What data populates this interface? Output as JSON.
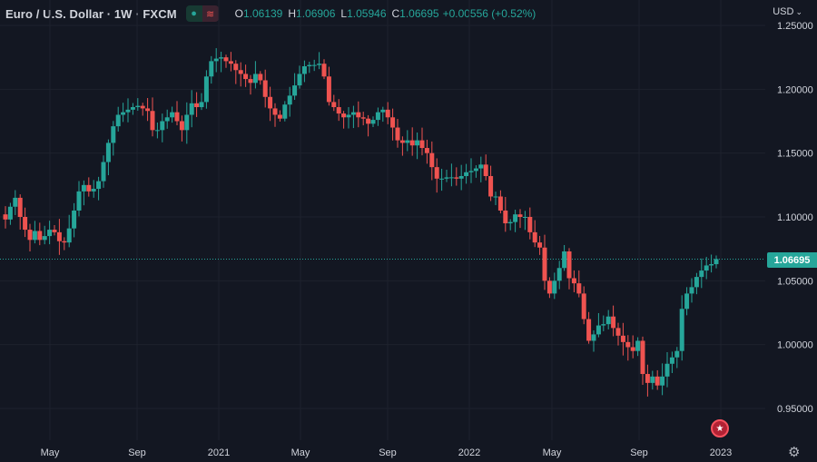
{
  "header": {
    "symbol": "Euro / U.S. Dollar · 1W · FXCM",
    "pill_left_icon": "dot-icon",
    "pill_right_icon": "wave-icon",
    "ohlc": [
      {
        "key": "O",
        "value": "1.06139"
      },
      {
        "key": "H",
        "value": "1.06906"
      },
      {
        "key": "L",
        "value": "1.05946"
      },
      {
        "key": "C",
        "value": "1.06695"
      }
    ],
    "change": "+0.00556 (+0.52%)",
    "currency": "USD"
  },
  "last_price_label": "1.06695",
  "colors": {
    "background": "#131722",
    "up": "#26a69a",
    "down": "#ef5350",
    "grid": "#1e222d",
    "text": "#d1d4dc"
  },
  "chart_data": {
    "type": "candlestick",
    "interval": "1W",
    "y_ticks": [
      "1.25000",
      "1.20000",
      "1.15000",
      "1.10000",
      "1.05000",
      "1.00000",
      "0.95000"
    ],
    "x_ticks": [
      "May",
      "Sep",
      "2021",
      "May",
      "Sep",
      "2022",
      "May",
      "Sep",
      "2023"
    ],
    "ylim": [
      0.95,
      1.25
    ],
    "last_price": 1.06695,
    "close_path": [
      1.098,
      1.108,
      1.115,
      1.1,
      1.09,
      1.082,
      1.089,
      1.082,
      1.085,
      1.09,
      1.088,
      1.081,
      1.08,
      1.091,
      1.105,
      1.12,
      1.125,
      1.12,
      1.122,
      1.128,
      1.143,
      1.158,
      1.171,
      1.18,
      1.182,
      1.184,
      1.186,
      1.187,
      1.185,
      1.183,
      1.168,
      1.168,
      1.175,
      1.178,
      1.182,
      1.175,
      1.168,
      1.18,
      1.189,
      1.186,
      1.19,
      1.21,
      1.222,
      1.224,
      1.225,
      1.222,
      1.22,
      1.215,
      1.212,
      1.208,
      1.205,
      1.212,
      1.207,
      1.194,
      1.185,
      1.18,
      1.177,
      1.188,
      1.195,
      1.203,
      1.212,
      1.218,
      1.219,
      1.219,
      1.22,
      1.21,
      1.19,
      1.186,
      1.181,
      1.178,
      1.18,
      1.182,
      1.178,
      1.177,
      1.173,
      1.176,
      1.182,
      1.184,
      1.178,
      1.17,
      1.16,
      1.158,
      1.16,
      1.156,
      1.16,
      1.154,
      1.15,
      1.139,
      1.13,
      1.13,
      1.131,
      1.131,
      1.13,
      1.132,
      1.135,
      1.136,
      1.138,
      1.141,
      1.132,
      1.116,
      1.116,
      1.105,
      1.095,
      1.096,
      1.102,
      1.1,
      1.1,
      1.088,
      1.08,
      1.076,
      1.05,
      1.04,
      1.05,
      1.06,
      1.073,
      1.052,
      1.048,
      1.04,
      1.02,
      1.003,
      1.008,
      1.015,
      1.016,
      1.022,
      1.013,
      1.007,
      1.002,
      0.998,
      0.995,
      1.003,
      0.977,
      0.97,
      0.975,
      0.968,
      0.975,
      0.985,
      0.99,
      0.995,
      1.028,
      1.04,
      1.045,
      1.053,
      1.058,
      1.062,
      1.063,
      1.067
    ]
  }
}
